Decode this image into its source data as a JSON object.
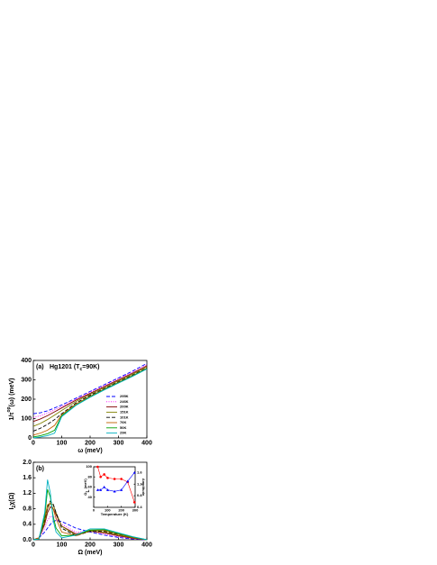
{
  "chart_data": [
    {
      "type": "line",
      "panel_label": "(a)",
      "annotation": [
        "Hg1201 (T",
        "c",
        "=90K)"
      ],
      "ylabel": [
        "1/τ",
        "op",
        "(ω) (meV)"
      ],
      "xlabel": "ω (meV)",
      "x": [
        0,
        25,
        50,
        75,
        100,
        150,
        200,
        250,
        300,
        350,
        400
      ],
      "xlim": [
        0,
        400
      ],
      "xticks": [
        0,
        100,
        200,
        300,
        400
      ],
      "ylim": [
        0,
        400
      ],
      "yticks": [
        0,
        100,
        200,
        300,
        400
      ],
      "series": [
        {
          "name": "295K",
          "color": "#0000ff",
          "dash": "dashed",
          "values": [
            125,
            130,
            140,
            155,
            170,
            205,
            240,
            275,
            310,
            345,
            385
          ]
        },
        {
          "name": "246K",
          "color": "#ff00ff",
          "dash": "dotted",
          "values": [
            105,
            115,
            128,
            145,
            162,
            200,
            235,
            270,
            305,
            340,
            378
          ]
        },
        {
          "name": "200K",
          "color": "#800000",
          "dash": "solid",
          "values": [
            85,
            98,
            115,
            135,
            155,
            195,
            230,
            265,
            300,
            335,
            372
          ]
        },
        {
          "name": "151K",
          "color": "#808000",
          "dash": "solid",
          "values": [
            60,
            75,
            95,
            118,
            142,
            188,
            225,
            260,
            295,
            330,
            368
          ]
        },
        {
          "name": "101K",
          "color": "#000000",
          "dash": "dashed",
          "values": [
            35,
            50,
            70,
            95,
            125,
            180,
            220,
            255,
            290,
            325,
            362
          ]
        },
        {
          "name": "76K",
          "color": "#c06000",
          "dash": "solid",
          "values": [
            15,
            25,
            40,
            65,
            120,
            175,
            215,
            252,
            287,
            322,
            360
          ]
        },
        {
          "name": "50K",
          "color": "#00a000",
          "dash": "solid",
          "values": [
            5,
            12,
            22,
            40,
            115,
            170,
            212,
            250,
            285,
            320,
            358
          ]
        },
        {
          "name": "29K",
          "color": "#00b0c0",
          "dash": "solid",
          "values": [
            0,
            5,
            12,
            25,
            110,
            168,
            210,
            248,
            283,
            318,
            356
          ]
        }
      ]
    },
    {
      "type": "line",
      "panel_label": "(b)",
      "ylabel": [
        "I",
        "2",
        "χ(Ω)"
      ],
      "xlabel": "Ω (meV)",
      "x": [
        0,
        20,
        40,
        50,
        60,
        70,
        80,
        100,
        150,
        200,
        250,
        300,
        350,
        400
      ],
      "xlim": [
        0,
        400
      ],
      "xticks": [
        0,
        100,
        200,
        300,
        400
      ],
      "ylim": [
        0,
        2
      ],
      "yticks": [
        {
          "value": 0,
          "label": "0.0"
        },
        0.4,
        0.8,
        1.2,
        1.6,
        {
          "value": 2,
          "label": "2.0"
        }
      ],
      "series": [
        {
          "color": "#0000ff",
          "dash": "dashed",
          "values": [
            0,
            0.05,
            0.2,
            0.3,
            0.4,
            0.47,
            0.5,
            0.47,
            0.3,
            0.2,
            0.12,
            0.06,
            0.02,
            0
          ]
        },
        {
          "color": "#ff00ff",
          "dash": "dotted",
          "values": [
            0,
            0.05,
            0.3,
            0.5,
            0.6,
            0.6,
            0.55,
            0.4,
            0.2,
            0.22,
            0.15,
            0.08,
            0.03,
            0
          ]
        },
        {
          "color": "#800000",
          "dash": "solid",
          "values": [
            0,
            0.05,
            0.4,
            0.7,
            0.85,
            0.8,
            0.65,
            0.35,
            0.15,
            0.22,
            0.18,
            0.1,
            0.04,
            0
          ]
        },
        {
          "color": "#808000",
          "dash": "solid",
          "values": [
            0,
            0.05,
            0.45,
            0.8,
            0.95,
            0.9,
            0.7,
            0.35,
            0.12,
            0.22,
            0.2,
            0.12,
            0.05,
            0
          ]
        },
        {
          "color": "#000000",
          "dash": "dashed",
          "values": [
            0,
            0.05,
            0.5,
            0.85,
            1.0,
            0.92,
            0.7,
            0.3,
            0.1,
            0.22,
            0.22,
            0.14,
            0.06,
            0
          ]
        },
        {
          "color": "#c06000",
          "dash": "solid",
          "values": [
            0,
            0.05,
            0.55,
            0.9,
            0.95,
            0.8,
            0.55,
            0.2,
            0.1,
            0.24,
            0.24,
            0.15,
            0.06,
            0
          ]
        },
        {
          "color": "#00a000",
          "dash": "solid",
          "values": [
            0,
            0.02,
            0.6,
            1.3,
            1.1,
            0.6,
            0.3,
            0.1,
            0.12,
            0.25,
            0.26,
            0.16,
            0.07,
            0
          ]
        },
        {
          "color": "#00b0c0",
          "dash": "solid",
          "values": [
            0,
            0.02,
            0.7,
            1.55,
            1.2,
            0.5,
            0.2,
            0.05,
            0.12,
            0.28,
            0.28,
            0.18,
            0.08,
            0
          ]
        }
      ]
    },
    {
      "type": "scatter",
      "ylabel": [
        "Ω",
        "L",
        " (meV)"
      ],
      "y2label": "Amplitude",
      "xlabel": "Temperature (K)",
      "x": [
        29,
        50,
        76,
        101,
        151,
        200,
        246,
        295
      ],
      "xlim": [
        0,
        300
      ],
      "xticks": [
        0,
        100,
        200,
        300
      ],
      "ylim": [
        20,
        100
      ],
      "yticks": [
        40,
        60,
        80,
        100
      ],
      "y2lim": [
        0.4,
        1.8
      ],
      "y2ticks": [
        0.4,
        0.8,
        1.2,
        1.6
      ],
      "series": [
        {
          "color": "#ff0000",
          "marker": "circle",
          "values": [
            100,
            80,
            85,
            78,
            76,
            76,
            70,
            30
          ]
        },
        {
          "color": "#0000ff",
          "marker": "triangle",
          "axis": "y2",
          "values": [
            1.0,
            1.0,
            1.1,
            1.0,
            0.95,
            1.0,
            1.3,
            1.6
          ]
        }
      ]
    }
  ]
}
